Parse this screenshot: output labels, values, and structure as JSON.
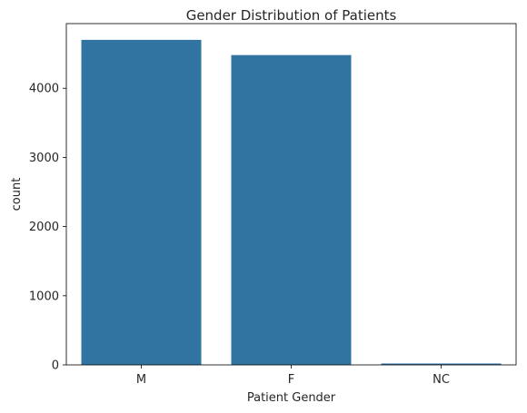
{
  "chart_data": {
    "type": "bar",
    "title": "Gender Distribution of Patients",
    "xlabel": "Patient Gender",
    "ylabel": "count",
    "categories": [
      "M",
      "F",
      "NC"
    ],
    "values": [
      4700,
      4480,
      20
    ],
    "ylim": [
      0,
      4935
    ],
    "yticks": [
      0,
      1000,
      2000,
      3000,
      4000
    ],
    "grid": false,
    "bar_color": "#3274a1"
  }
}
